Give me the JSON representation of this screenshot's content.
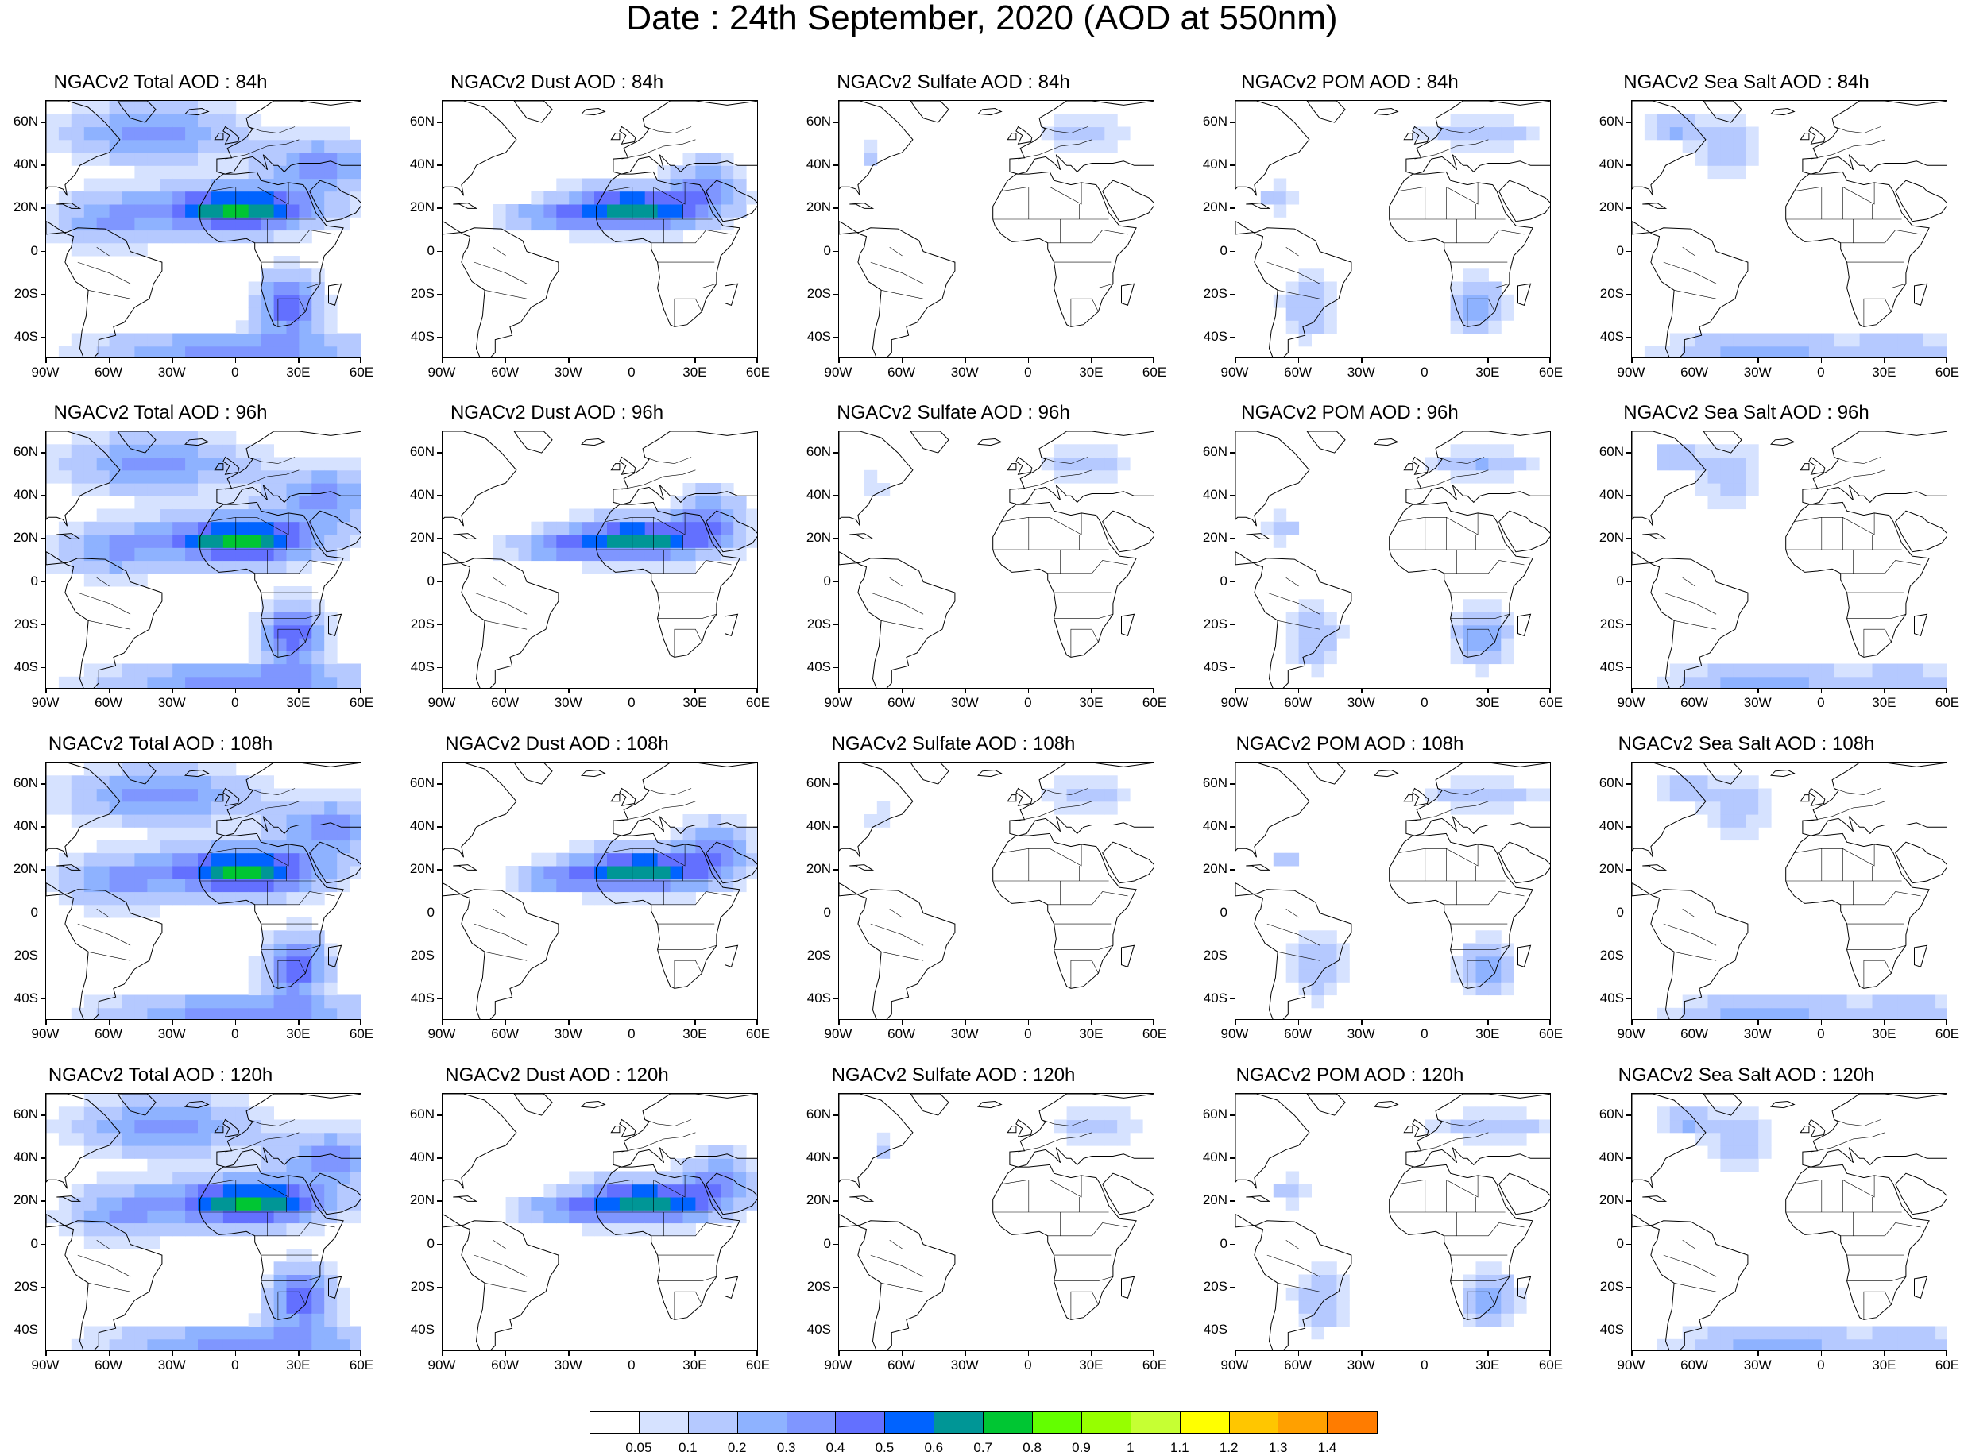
{
  "title": "Date : 24th September, 2020 (AOD at 550nm)",
  "lat_labels": [
    "60N",
    "40N",
    "20N",
    "0",
    "20S",
    "40S"
  ],
  "lon_labels": [
    "90W",
    "60W",
    "30W",
    "0",
    "30E",
    "60E"
  ],
  "species": [
    {
      "key": "total",
      "colormax": 0.75
    },
    {
      "key": "dust",
      "colormax": 0.7
    },
    {
      "key": "sulfate",
      "colormax": 0.15
    },
    {
      "key": "pom",
      "colormax": 0.3
    },
    {
      "key": "seasalt",
      "colormax": 0.3
    }
  ],
  "panels": [
    [
      "NGACv2 Total AOD : 84h",
      "NGACv2 Dust AOD : 84h",
      "NGACv2 Sulfate AOD : 84h",
      "NGACv2 POM AOD : 84h",
      "NGACv2 Sea Salt AOD : 84h"
    ],
    [
      "NGACv2 Total AOD : 96h",
      "NGACv2 Dust AOD : 96h",
      "NGACv2 Sulfate AOD : 96h",
      "NGACv2 POM AOD : 96h",
      "NGACv2 Sea Salt AOD : 96h"
    ],
    [
      "NGACv2 Total AOD : 108h",
      "NGACv2 Dust AOD : 108h",
      "NGACv2 Sulfate AOD : 108h",
      "NGACv2 POM AOD : 108h",
      "NGACv2 Sea Salt AOD : 108h"
    ],
    [
      "NGACv2 Total AOD : 120h",
      "NGACv2 Dust AOD : 120h",
      "NGACv2 Sulfate AOD : 120h",
      "NGACv2 POM AOD : 120h",
      "NGACv2 Sea Salt  AOD : 120h"
    ]
  ],
  "colorbar": {
    "labels": [
      "0.05",
      "0.1",
      "0.2",
      "0.3",
      "0.4",
      "0.5",
      "0.6",
      "0.7",
      "0.8",
      "0.9",
      "1",
      "1.1",
      "1.2",
      "1.3",
      "1.4"
    ],
    "colors": [
      "#ffffff",
      "#d6e2ff",
      "#b5c9ff",
      "#8eb2ff",
      "#7f96ff",
      "#6370ff",
      "#0063ff",
      "#009696",
      "#00c633",
      "#63ff00",
      "#96ff00",
      "#c6ff33",
      "#ffff00",
      "#ffc600",
      "#ffa000",
      "#ff7c00",
      "#ff1900"
    ]
  }
}
